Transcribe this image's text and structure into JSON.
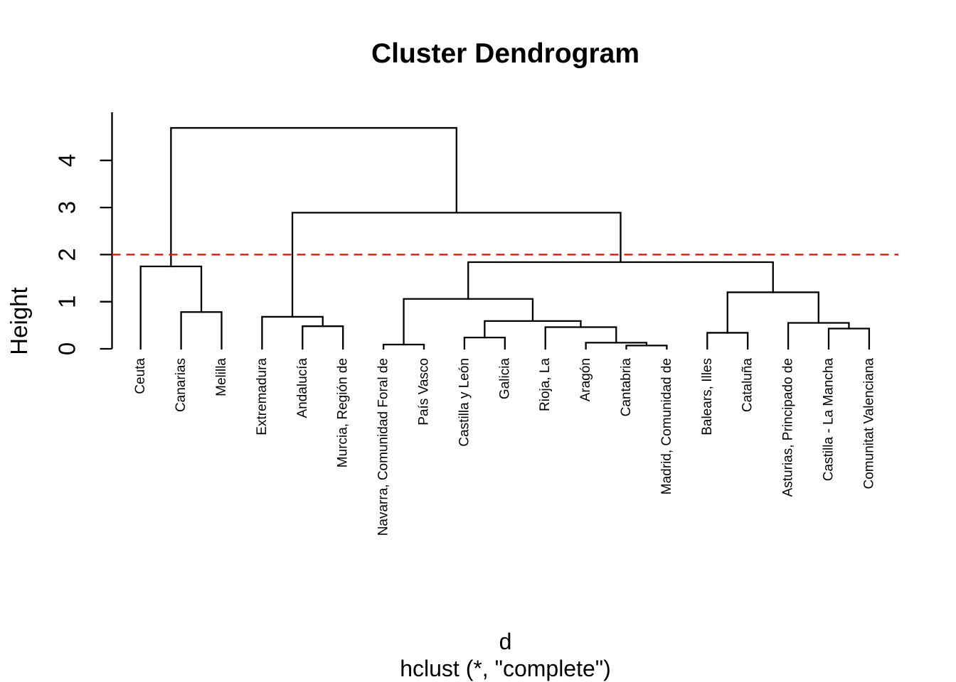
{
  "chart_data": {
    "type": "dendrogram",
    "title": "Cluster Dendrogram",
    "ylabel": "Height",
    "xlabel_line1": "d",
    "xlabel_line2": "hclust (*, \"complete\")",
    "ylim": [
      0,
      5
    ],
    "y_ticks": [
      0,
      1,
      2,
      3,
      4
    ],
    "grid": false,
    "line_color": "#000000",
    "cut_height": 2,
    "cut_line_color": "#FF0000",
    "cut_line_style": "dashed",
    "leaves": [
      "Ceuta",
      "Canarias",
      "Melilla",
      "Extremadura",
      "Andalucía",
      "Murcia, Región de",
      "Navarra, Comunidad Foral de",
      "País Vasco",
      "Castilla y León",
      "Galicia",
      "Rioja, La",
      "Aragón",
      "Cantabria",
      "Madrid, Comunidad de",
      "Balears, Illes",
      "Cataluña",
      "Asturias, Principado de",
      "Castilla - La Mancha",
      "Comunitat Valenciana"
    ],
    "merges": [
      {
        "id": "n1",
        "a": "Canarias",
        "b": "Melilla",
        "h": 0.78
      },
      {
        "id": "n2",
        "a": "Ceuta",
        "b": "n1",
        "h": 1.75
      },
      {
        "id": "n3",
        "a": "Andalucía",
        "b": "Murcia, Región de",
        "h": 0.48
      },
      {
        "id": "n4",
        "a": "Extremadura",
        "b": "n3",
        "h": 0.68
      },
      {
        "id": "n5",
        "a": "Navarra, Comunidad Foral de",
        "b": "País Vasco",
        "h": 0.09
      },
      {
        "id": "n6",
        "a": "Castilla y León",
        "b": "Galicia",
        "h": 0.24
      },
      {
        "id": "n7",
        "a": "Cantabria",
        "b": "Madrid, Comunidad de",
        "h": 0.07
      },
      {
        "id": "n8",
        "a": "Aragón",
        "b": "n7",
        "h": 0.13
      },
      {
        "id": "n9",
        "a": "Rioja, La",
        "b": "n8",
        "h": 0.46
      },
      {
        "id": "n10",
        "a": "n6",
        "b": "n9",
        "h": 0.59
      },
      {
        "id": "n11",
        "a": "n5",
        "b": "n10",
        "h": 1.06
      },
      {
        "id": "n12",
        "a": "Balears, Illes",
        "b": "Cataluña",
        "h": 0.34
      },
      {
        "id": "n13",
        "a": "Castilla - La Mancha",
        "b": "Comunitat Valenciana",
        "h": 0.43
      },
      {
        "id": "n14",
        "a": "Asturias, Principado de",
        "b": "n13",
        "h": 0.55
      },
      {
        "id": "n15",
        "a": "n12",
        "b": "n14",
        "h": 1.2
      },
      {
        "id": "n16",
        "a": "n11",
        "b": "n15",
        "h": 1.84
      },
      {
        "id": "n17",
        "a": "n4",
        "b": "n16",
        "h": 2.89
      },
      {
        "id": "n18",
        "a": "n2",
        "b": "n17",
        "h": 4.69
      }
    ]
  }
}
